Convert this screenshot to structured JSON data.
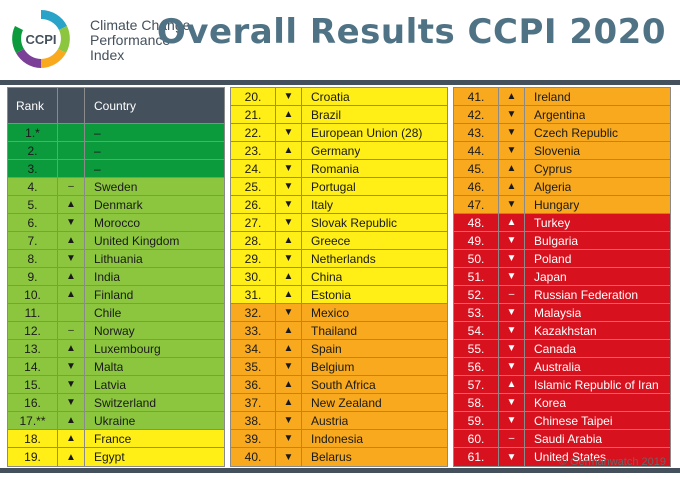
{
  "logo": {
    "abbrev": "CCPI",
    "lines": [
      "Climate Change",
      "Performance",
      "Index"
    ]
  },
  "title": "Overall Results CCPI 2020",
  "table_header": {
    "rank": "Rank",
    "country": "Country"
  },
  "rows": [
    {
      "rank": "1.*",
      "arrow": "",
      "country": "–",
      "band": "dkgreen"
    },
    {
      "rank": "2.",
      "arrow": "",
      "country": "–",
      "band": "dkgreen"
    },
    {
      "rank": "3.",
      "arrow": "",
      "country": "–",
      "band": "dkgreen"
    },
    {
      "rank": "4.",
      "arrow": "–",
      "country": "Sweden",
      "band": "ltgreen"
    },
    {
      "rank": "5.",
      "arrow": "▲",
      "country": "Denmark",
      "band": "ltgreen"
    },
    {
      "rank": "6.",
      "arrow": "▼",
      "country": "Morocco",
      "band": "ltgreen"
    },
    {
      "rank": "7.",
      "arrow": "▲",
      "country": "United Kingdom",
      "band": "ltgreen"
    },
    {
      "rank": "8.",
      "arrow": "▼",
      "country": "Lithuania",
      "band": "ltgreen"
    },
    {
      "rank": "9.",
      "arrow": "▲",
      "country": "India",
      "band": "ltgreen"
    },
    {
      "rank": "10.",
      "arrow": "▲",
      "country": "Finland",
      "band": "ltgreen"
    },
    {
      "rank": "11.",
      "arrow": "",
      "country": "Chile",
      "band": "ltgreen"
    },
    {
      "rank": "12.",
      "arrow": "–",
      "country": "Norway",
      "band": "ltgreen"
    },
    {
      "rank": "13.",
      "arrow": "▲",
      "country": "Luxembourg",
      "band": "ltgreen"
    },
    {
      "rank": "14.",
      "arrow": "▼",
      "country": "Malta",
      "band": "ltgreen"
    },
    {
      "rank": "15.",
      "arrow": "▼",
      "country": "Latvia",
      "band": "ltgreen"
    },
    {
      "rank": "16.",
      "arrow": "▼",
      "country": "Switzerland",
      "band": "ltgreen"
    },
    {
      "rank": "17.**",
      "arrow": "▲",
      "country": "Ukraine",
      "band": "ltgreen"
    },
    {
      "rank": "18.",
      "arrow": "▲",
      "country": "France",
      "band": "yellow"
    },
    {
      "rank": "19.",
      "arrow": "▲",
      "country": "Egypt",
      "band": "yellow"
    },
    {
      "rank": "20.",
      "arrow": "▼",
      "country": "Croatia",
      "band": "yellow"
    },
    {
      "rank": "21.",
      "arrow": "▲",
      "country": "Brazil",
      "band": "yellow"
    },
    {
      "rank": "22.",
      "arrow": "▼",
      "country": "European Union (28)",
      "band": "yellow"
    },
    {
      "rank": "23.",
      "arrow": "▲",
      "country": "Germany",
      "band": "yellow"
    },
    {
      "rank": "24.",
      "arrow": "▼",
      "country": "Romania",
      "band": "yellow"
    },
    {
      "rank": "25.",
      "arrow": "▼",
      "country": "Portugal",
      "band": "yellow"
    },
    {
      "rank": "26.",
      "arrow": "▼",
      "country": "Italy",
      "band": "yellow"
    },
    {
      "rank": "27.",
      "arrow": "▼",
      "country": "Slovak Republic",
      "band": "yellow"
    },
    {
      "rank": "28.",
      "arrow": "▲",
      "country": "Greece",
      "band": "yellow"
    },
    {
      "rank": "29.",
      "arrow": "▼",
      "country": "Netherlands",
      "band": "yellow"
    },
    {
      "rank": "30.",
      "arrow": "▲",
      "country": "China",
      "band": "yellow"
    },
    {
      "rank": "31.",
      "arrow": "▲",
      "country": "Estonia",
      "band": "yellow"
    },
    {
      "rank": "32.",
      "arrow": "▼",
      "country": "Mexico",
      "band": "orange"
    },
    {
      "rank": "33.",
      "arrow": "▲",
      "country": "Thailand",
      "band": "orange"
    },
    {
      "rank": "34.",
      "arrow": "▲",
      "country": "Spain",
      "band": "orange"
    },
    {
      "rank": "35.",
      "arrow": "▼",
      "country": "Belgium",
      "band": "orange"
    },
    {
      "rank": "36.",
      "arrow": "▲",
      "country": "South Africa",
      "band": "orange"
    },
    {
      "rank": "37.",
      "arrow": "▲",
      "country": "New Zealand",
      "band": "orange"
    },
    {
      "rank": "38.",
      "arrow": "▼",
      "country": "Austria",
      "band": "orange"
    },
    {
      "rank": "39.",
      "arrow": "▼",
      "country": "Indonesia",
      "band": "orange"
    },
    {
      "rank": "40.",
      "arrow": "▼",
      "country": "Belarus",
      "band": "orange"
    },
    {
      "rank": "41.",
      "arrow": "▲",
      "country": "Ireland",
      "band": "orange"
    },
    {
      "rank": "42.",
      "arrow": "▼",
      "country": "Argentina",
      "band": "orange"
    },
    {
      "rank": "43.",
      "arrow": "▼",
      "country": "Czech Republic",
      "band": "orange"
    },
    {
      "rank": "44.",
      "arrow": "▼",
      "country": "Slovenia",
      "band": "orange"
    },
    {
      "rank": "45.",
      "arrow": "▲",
      "country": "Cyprus",
      "band": "orange"
    },
    {
      "rank": "46.",
      "arrow": "▲",
      "country": "Algeria",
      "band": "orange"
    },
    {
      "rank": "47.",
      "arrow": "▼",
      "country": "Hungary",
      "band": "orange"
    },
    {
      "rank": "48.",
      "arrow": "▲",
      "country": "Turkey",
      "band": "red"
    },
    {
      "rank": "49.",
      "arrow": "▼",
      "country": "Bulgaria",
      "band": "red"
    },
    {
      "rank": "50.",
      "arrow": "▼",
      "country": "Poland",
      "band": "red"
    },
    {
      "rank": "51.",
      "arrow": "▼",
      "country": "Japan",
      "band": "red"
    },
    {
      "rank": "52.",
      "arrow": "–",
      "country": "Russian Federation",
      "band": "red"
    },
    {
      "rank": "53.",
      "arrow": "▼",
      "country": "Malaysia",
      "band": "red"
    },
    {
      "rank": "54.",
      "arrow": "▼",
      "country": "Kazakhstan",
      "band": "red"
    },
    {
      "rank": "55.",
      "arrow": "▼",
      "country": "Canada",
      "band": "red"
    },
    {
      "rank": "56.",
      "arrow": "▼",
      "country": "Australia",
      "band": "red"
    },
    {
      "rank": "57.",
      "arrow": "▲",
      "country": "Islamic Republic of Iran",
      "band": "red"
    },
    {
      "rank": "58.",
      "arrow": "▼",
      "country": "Korea",
      "band": "red"
    },
    {
      "rank": "59.",
      "arrow": "▼",
      "country": "Chinese Taipei",
      "band": "red"
    },
    {
      "rank": "60.",
      "arrow": "–",
      "country": "Saudi Arabia",
      "band": "red"
    },
    {
      "rank": "61.",
      "arrow": "▼",
      "country": "United States",
      "band": "red"
    }
  ],
  "footer": "© Germanwatch 2019",
  "colors": {
    "header_bar": "#44505c",
    "title": "#4f7385",
    "very_high": "#0b9a3c",
    "high": "#8cc63f",
    "medium": "#ffef16",
    "low": "#f8a91e",
    "very_low": "#d7121e"
  }
}
